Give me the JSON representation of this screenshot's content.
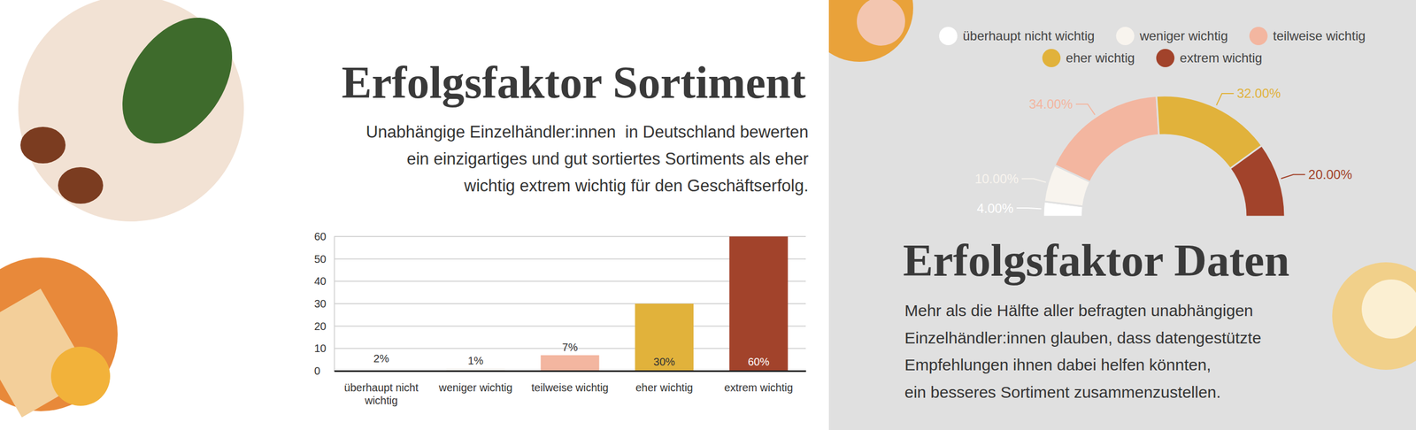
{
  "chart_data": [
    {
      "type": "bar",
      "title": "Erfolgsfaktor Sortiment",
      "subtitle": [
        "Unabhängige Einzelhändler:innen  in Deutschland bewerten",
        "ein einzigartiges und gut sortiertes Sortiments als eher",
        "wichtig extrem wichtig für den Geschäftserfolg."
      ],
      "categories": [
        "überhaupt nicht wichtig",
        "weniger wichtig",
        "teilweise wichtig",
        "eher wichtig",
        "extrem wichtig"
      ],
      "values": [
        2,
        1,
        7,
        30,
        60
      ],
      "value_labels": [
        "2%",
        "1%",
        "7%",
        "30%",
        "60%"
      ],
      "colors": [
        "#ffffff",
        "#f8f4ee",
        "#f3b6a0",
        "#e1b23b",
        "#a2432b"
      ],
      "ylim": [
        0,
        60
      ],
      "yticks": [
        0,
        10,
        20,
        30,
        40,
        50,
        60
      ],
      "grid": true,
      "data_labels": true
    },
    {
      "type": "pie",
      "title": "Erfolgsfaktor Daten",
      "subtitle": [
        "Mehr als die Hälfte aller befragten unabhängigen",
        "Einzelhändler:innen glauben, dass datengestützte",
        "Empfehlungen ihnen dabei helfen könnten,",
        "ein besseres Sortiment zusammenzustellen."
      ],
      "categories": [
        "überhaupt nicht wichtig",
        "weniger wichtig",
        "teilweise wichtig",
        "eher wichtig",
        "extrem wichtig"
      ],
      "values": [
        4,
        10,
        34,
        32,
        20
      ],
      "value_labels": [
        "4.00%",
        "10.00%",
        "34.00%",
        "32.00%",
        "20.00%"
      ],
      "colors": [
        "#ffffff",
        "#f8f4ee",
        "#f3b6a0",
        "#e1b23b",
        "#a2432b"
      ],
      "legend": "top",
      "data_labels": true
    }
  ]
}
